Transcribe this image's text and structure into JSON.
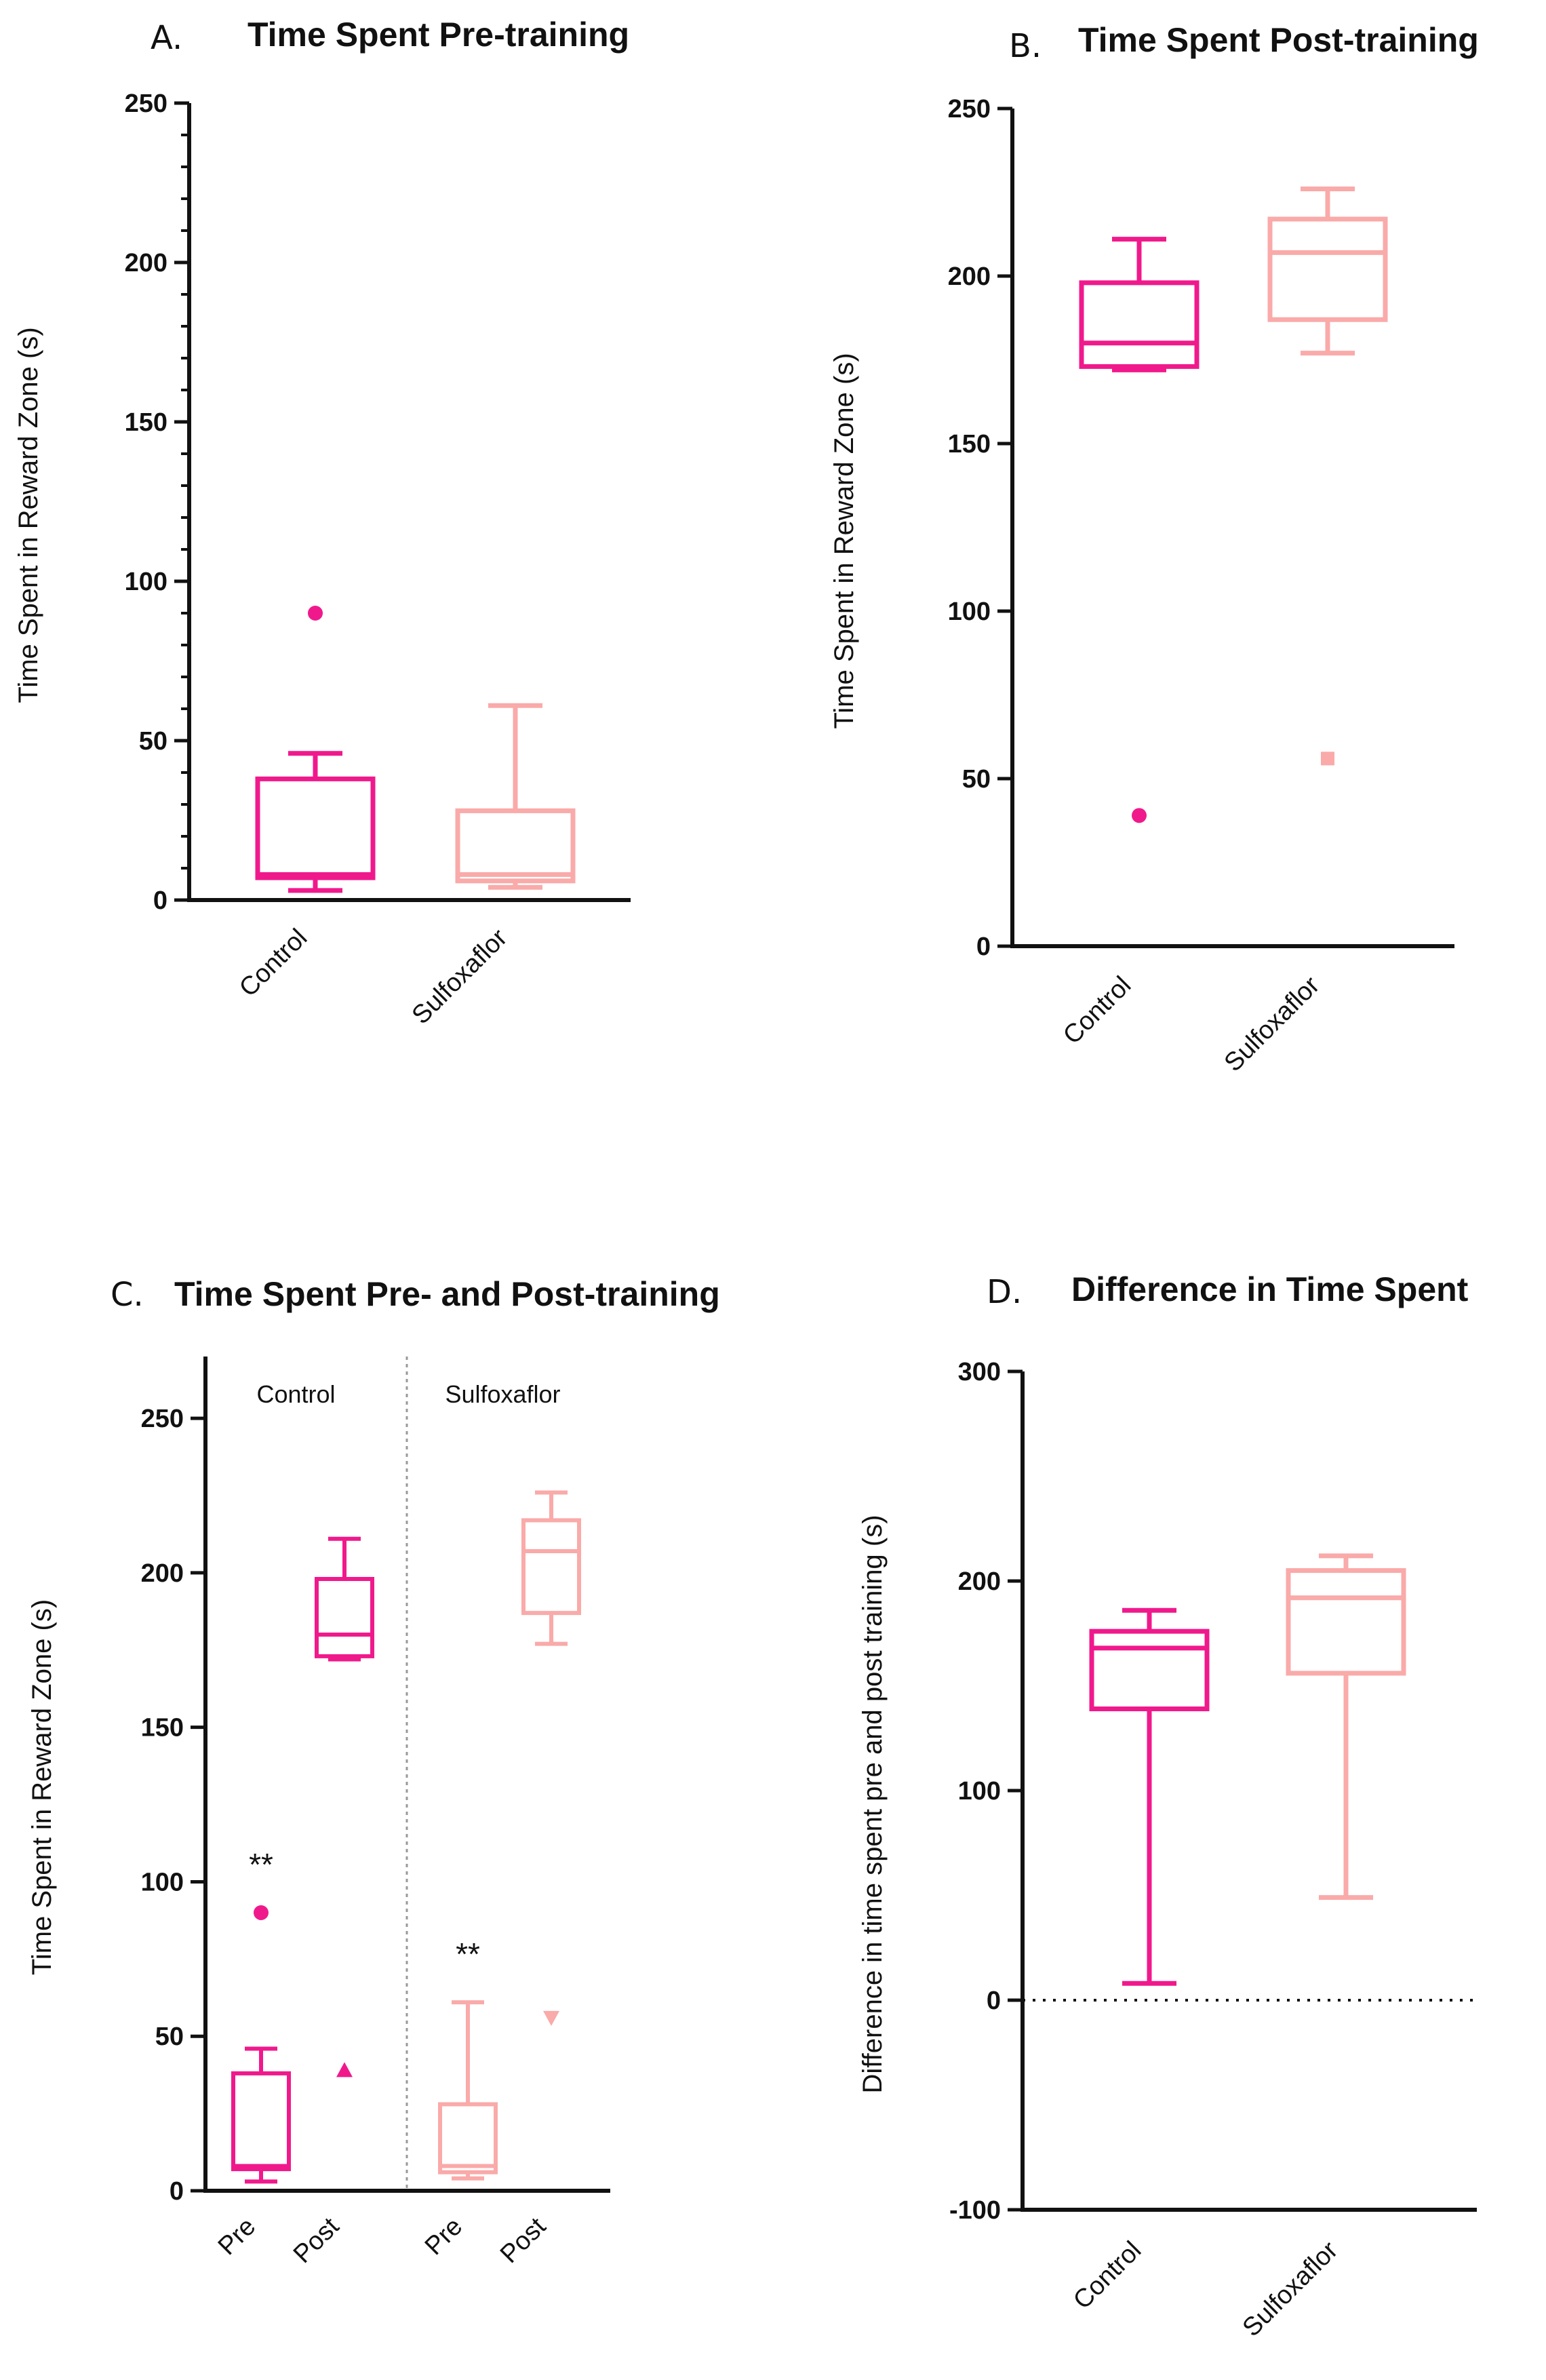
{
  "colors": {
    "control": "#f0198c",
    "sulfoxaflor": "#f9aaa9",
    "axis": "#111111"
  },
  "chart_data": [
    {
      "id": "A",
      "letter": "A.",
      "title": "Time Spent Pre-training",
      "type": "box",
      "ylabel": "Time Spent in Reward Zone (s)",
      "ylim": [
        0,
        250
      ],
      "yticks": [
        0,
        50,
        100,
        150,
        200,
        250
      ],
      "boxes": [
        {
          "label": "Control",
          "series": "control",
          "min": 3,
          "q1": 7,
          "median": 8,
          "q3": 38,
          "max": 46,
          "outliers": [
            {
              "y": 90,
              "marker": "circle"
            }
          ]
        },
        {
          "label": "Sulfoxaflor",
          "series": "sulfoxaflor",
          "min": 4,
          "q1": 6,
          "median": 8,
          "q3": 28,
          "max": 61,
          "outliers": []
        }
      ]
    },
    {
      "id": "B",
      "letter": "B.",
      "title": "Time Spent Post-training",
      "type": "box",
      "ylabel": "Time Spent in Reward Zone (s)",
      "ylim": [
        0,
        250
      ],
      "yticks": [
        0,
        50,
        100,
        150,
        200,
        250
      ],
      "boxes": [
        {
          "label": "Control",
          "series": "control",
          "min": 172,
          "q1": 173,
          "median": 180,
          "q3": 198,
          "max": 211,
          "outliers": [
            {
              "y": 39,
              "marker": "circle"
            }
          ]
        },
        {
          "label": "Sulfoxaflor",
          "series": "sulfoxaflor",
          "min": 177,
          "q1": 187,
          "median": 207,
          "q3": 217,
          "max": 226,
          "outliers": [
            {
              "y": 56,
              "marker": "square"
            }
          ]
        }
      ]
    },
    {
      "id": "C",
      "letter": "C.",
      "title": "Time Spent Pre- and Post-training",
      "type": "box",
      "ylabel": "Time Spent in Reward Zone (s)",
      "ylim": [
        0,
        250
      ],
      "yticks": [
        0,
        50,
        100,
        150,
        200,
        250
      ],
      "groups": [
        {
          "label": "Control",
          "categories": [
            0,
            1
          ]
        },
        {
          "label": "Sulfoxaflor",
          "categories": [
            2,
            3
          ]
        }
      ],
      "boxes": [
        {
          "label": "Pre",
          "series": "control",
          "min": 3,
          "q1": 7,
          "median": 8,
          "q3": 38,
          "max": 46,
          "outliers": [
            {
              "y": 90,
              "marker": "circle"
            }
          ],
          "annotation": "**"
        },
        {
          "label": "Post",
          "series": "control",
          "min": 172,
          "q1": 173,
          "median": 180,
          "q3": 198,
          "max": 211,
          "outliers": [
            {
              "y": 39,
              "marker": "triangle-up"
            }
          ]
        },
        {
          "label": "Pre",
          "series": "sulfoxaflor",
          "min": 4,
          "q1": 6,
          "median": 8,
          "q3": 28,
          "max": 61,
          "outliers": [],
          "annotation": "**"
        },
        {
          "label": "Post",
          "series": "sulfoxaflor",
          "min": 177,
          "q1": 187,
          "median": 207,
          "q3": 217,
          "max": 226,
          "outliers": [
            {
              "y": 56,
              "marker": "triangle-down"
            }
          ]
        }
      ]
    },
    {
      "id": "D",
      "letter": "D.",
      "title": "Difference in Time Spent",
      "type": "box",
      "ylabel": "Difference in time spent pre and post training (s)",
      "ylim": [
        -100,
        300
      ],
      "yticks": [
        -100,
        0,
        100,
        200,
        300
      ],
      "reference_line": 0,
      "boxes": [
        {
          "label": "Control",
          "series": "control",
          "min": 8,
          "q1": 139,
          "median": 168,
          "q3": 176,
          "max": 186,
          "outliers": []
        },
        {
          "label": "Sulfoxaflor",
          "series": "sulfoxaflor",
          "min": 49,
          "q1": 156,
          "median": 192,
          "q3": 205,
          "max": 212,
          "outliers": []
        }
      ]
    }
  ]
}
